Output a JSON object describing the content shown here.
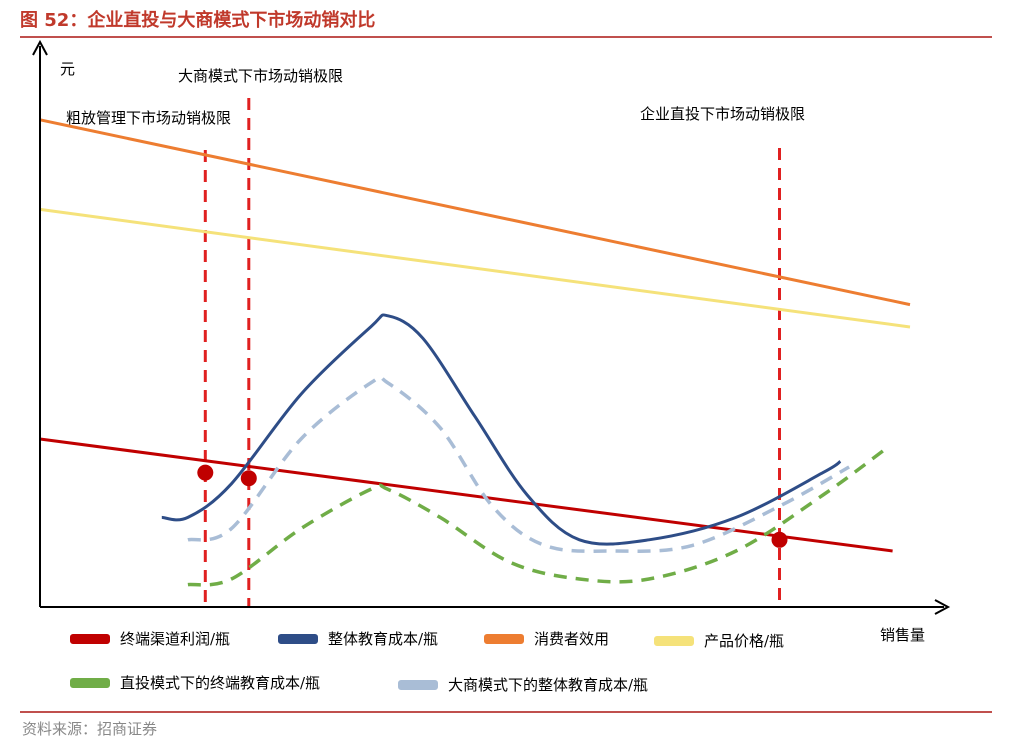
{
  "figure": {
    "title": "图 52：企业直投与大商模式下市场动销对比",
    "source": "资料来源：招商证券"
  },
  "chart_data": {
    "type": "line",
    "title": "图 52：企业直投与大商模式下市场动销对比",
    "ylabel": "元",
    "xlabel": "销售量",
    "axis_ticks": "none",
    "grid": false,
    "legend_placement": "bottom",
    "vlines": [
      {
        "label": "粗放管理下市场动销极限",
        "x": 0.19
      },
      {
        "label": "大商模式下市场动销极限",
        "x": 0.24
      },
      {
        "label": "企业直投下市场动销极限",
        "x": 0.85
      }
    ],
    "intersection_points": [
      {
        "x": 0.19,
        "y": 0.24
      },
      {
        "x": 0.24,
        "y": 0.23
      },
      {
        "x": 0.85,
        "y": 0.12
      }
    ],
    "series": [
      {
        "name": "终端渠道利润/瓶",
        "color": "#c00000",
        "style": "solid",
        "points": [
          [
            0.0,
            0.3
          ],
          [
            0.98,
            0.1
          ]
        ]
      },
      {
        "name": "整体教育成本/瓶",
        "color": "#2e4d87",
        "style": "solid",
        "points": [
          [
            0.14,
            0.16
          ],
          [
            0.17,
            0.16
          ],
          [
            0.22,
            0.22
          ],
          [
            0.3,
            0.38
          ],
          [
            0.38,
            0.5
          ],
          [
            0.4,
            0.52
          ],
          [
            0.44,
            0.48
          ],
          [
            0.5,
            0.34
          ],
          [
            0.56,
            0.2
          ],
          [
            0.62,
            0.12
          ],
          [
            0.7,
            0.12
          ],
          [
            0.8,
            0.16
          ],
          [
            0.9,
            0.24
          ],
          [
            0.92,
            0.26
          ]
        ]
      },
      {
        "name": "消费者效用",
        "color": "#ed7d31",
        "style": "solid",
        "points": [
          [
            0.0,
            0.87
          ],
          [
            1.0,
            0.54
          ]
        ]
      },
      {
        "name": "产品价格/瓶",
        "color": "#f5e27a",
        "style": "solid",
        "points": [
          [
            0.0,
            0.71
          ],
          [
            1.0,
            0.5
          ]
        ]
      },
      {
        "name": "直投模式下的终端教育成本/瓶",
        "color": "#70ad47",
        "style": "dashed",
        "points": [
          [
            0.17,
            0.04
          ],
          [
            0.22,
            0.05
          ],
          [
            0.3,
            0.14
          ],
          [
            0.38,
            0.21
          ],
          [
            0.4,
            0.21
          ],
          [
            0.46,
            0.16
          ],
          [
            0.54,
            0.08
          ],
          [
            0.62,
            0.05
          ],
          [
            0.7,
            0.05
          ],
          [
            0.8,
            0.1
          ],
          [
            0.9,
            0.2
          ],
          [
            0.97,
            0.28
          ]
        ]
      },
      {
        "name": "大商模式下的整体教育成本/瓶",
        "color": "#a9bdd6",
        "style": "dashed",
        "points": [
          [
            0.17,
            0.12
          ],
          [
            0.22,
            0.14
          ],
          [
            0.3,
            0.3
          ],
          [
            0.38,
            0.4
          ],
          [
            0.4,
            0.4
          ],
          [
            0.46,
            0.32
          ],
          [
            0.52,
            0.18
          ],
          [
            0.58,
            0.11
          ],
          [
            0.66,
            0.1
          ],
          [
            0.75,
            0.11
          ],
          [
            0.85,
            0.18
          ],
          [
            0.93,
            0.25
          ]
        ]
      }
    ]
  }
}
